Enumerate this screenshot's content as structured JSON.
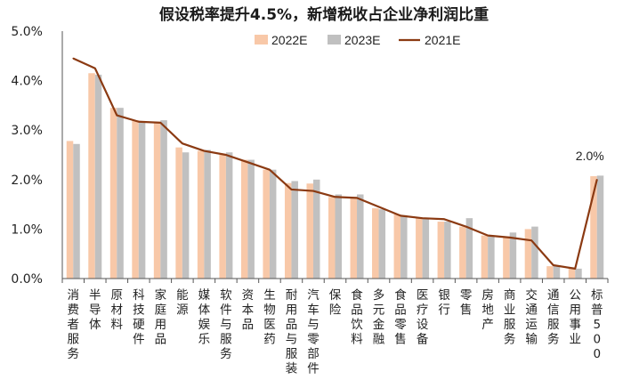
{
  "chart_data": {
    "type": "bar",
    "title": "假设税率提升4.5%，新增税收占企业净利润比重",
    "categories": [
      "消费者服务",
      "半导体",
      "原材料",
      "科技硬件",
      "家庭用品",
      "能源",
      "媒体娱乐",
      "软件与服务",
      "资本品",
      "生物医药",
      "耐用品与服装",
      "汽车与零部件",
      "保险",
      "食品饮料",
      "多元金融",
      "食品零售",
      "医疗设备",
      "银行",
      "零售",
      "房地产",
      "商业服务",
      "交通运输",
      "通信服务",
      "公用事业",
      "标普500"
    ],
    "series": [
      {
        "name": "2022E",
        "kind": "bar",
        "color": "#F8C8A8",
        "values": [
          2.78,
          4.15,
          3.45,
          3.2,
          3.17,
          2.65,
          2.58,
          2.5,
          2.4,
          2.2,
          1.93,
          1.92,
          1.65,
          1.65,
          1.42,
          1.3,
          1.22,
          1.15,
          1.05,
          0.87,
          0.85,
          1.0,
          0.25,
          0.2,
          2.07
        ]
      },
      {
        "name": "2023E",
        "kind": "bar",
        "color": "#C0C0C0",
        "values": [
          2.72,
          4.12,
          3.45,
          3.18,
          3.2,
          2.55,
          2.6,
          2.55,
          2.4,
          2.2,
          1.97,
          2.0,
          1.7,
          1.7,
          1.4,
          1.28,
          1.22,
          1.15,
          1.22,
          0.85,
          0.93,
          1.05,
          0.27,
          0.2,
          2.08
        ]
      },
      {
        "name": "2021E",
        "kind": "line",
        "color": "#8B3A12",
        "values": [
          4.45,
          4.25,
          3.3,
          3.17,
          3.15,
          2.73,
          2.58,
          2.5,
          2.35,
          2.2,
          1.8,
          1.77,
          1.65,
          1.63,
          1.45,
          1.27,
          1.22,
          1.2,
          1.05,
          0.87,
          0.83,
          0.77,
          0.27,
          0.2,
          2.0
        ]
      }
    ],
    "ylim": [
      0,
      5
    ],
    "yticks": [
      "0.0%",
      "1.0%",
      "2.0%",
      "3.0%",
      "4.0%",
      "5.0%"
    ],
    "yticks_values": [
      0,
      1,
      2,
      3,
      4,
      5
    ],
    "annotation": {
      "text": "2.0%",
      "category": "标普500"
    },
    "legend": "top-center",
    "xlabel": "",
    "ylabel": ""
  }
}
